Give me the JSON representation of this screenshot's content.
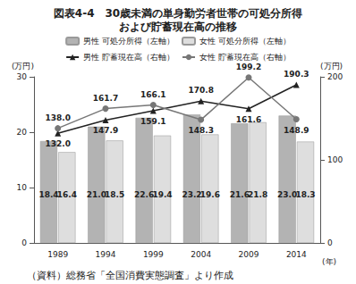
{
  "chart_data": {
    "type": "bar",
    "title": "図表4-4　30歳未満の単身勤労者世帯の可処分所得\nおよび貯蓄現在高の推移",
    "annotations": [
      "（資料）総務省「全国消費実態調査」より作成"
    ],
    "x_label": "(年)",
    "y_label": "(万円)",
    "y2_label": "(万円)",
    "categories": [
      "1989",
      "1994",
      "1999",
      "2004",
      "2009",
      "2014"
    ],
    "ylim": [
      0,
      30
    ],
    "yticks": [
      0,
      10,
      20,
      30
    ],
    "y2lim": [
      0,
      200
    ],
    "y2ticks": [
      0,
      100,
      200
    ],
    "grid": false,
    "legend": "top",
    "data_labels": true,
    "series": [
      {
        "name": "男性 可処分所得（左軸）",
        "type": "bar",
        "color": "#b3b3b3",
        "values": [
          18.4,
          21.0,
          22.6,
          23.2,
          21.6,
          23.0
        ],
        "value_labels": [
          "18.4",
          "21.0",
          "22.6",
          "23.2",
          "21.6",
          "23.0"
        ]
      },
      {
        "name": "女性 可処分所得（左軸）",
        "type": "bar",
        "color": "#dedede",
        "values": [
          16.4,
          18.5,
          19.4,
          19.6,
          21.8,
          18.3
        ],
        "value_labels": [
          "16.4",
          "18.5",
          "19.4",
          "19.6",
          "21.8",
          "18.3"
        ]
      },
      {
        "name": "男性 貯蓄現在高（右軸）",
        "type": "line",
        "axis": "y2",
        "color": "#222222",
        "marker": "triangle",
        "values": [
          132.0,
          147.9,
          159.1,
          170.8,
          161.6,
          190.3
        ],
        "value_labels": [
          "132.0",
          "147.9",
          "159.1",
          "170.8",
          "161.6",
          "190.3"
        ]
      },
      {
        "name": "女性 貯蓄現在高（右軸）",
        "type": "line",
        "axis": "y2",
        "color": "#777777",
        "marker": "circle",
        "values": [
          138.0,
          161.7,
          166.1,
          148.3,
          199.2,
          148.9
        ],
        "value_labels": [
          "138.0",
          "161.7",
          "166.1",
          "148.3",
          "199.2",
          "148.9"
        ]
      }
    ]
  }
}
